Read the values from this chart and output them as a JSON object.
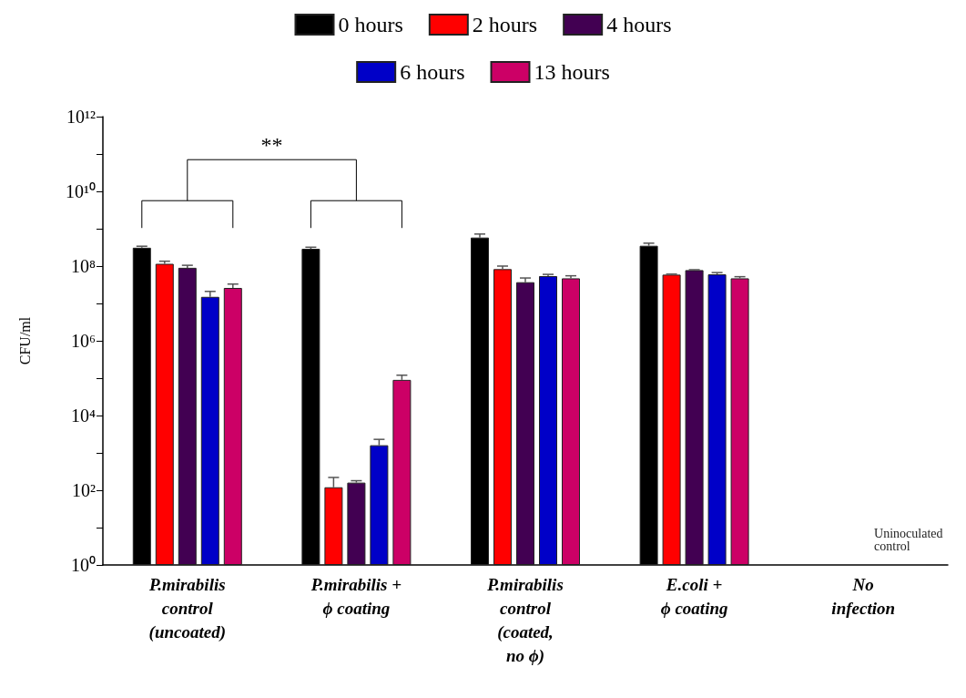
{
  "chart_data": {
    "type": "bar",
    "ylabel": "CFU/ml",
    "log": "y",
    "legend": "top",
    "grid": false,
    "categories": [
      "P.mirabilis\ncontrol\n(uncoated)",
      "P.mirabilis +\nϕ coating",
      "P.mirabilis\ncontrol\n(coated,\nno ϕ)",
      "E.coli +\nϕ coating",
      "No\ninfection"
    ],
    "ylim": [
      1,
      1000000000000
    ],
    "yticks": [
      {
        "value": 1,
        "label": "10⁰"
      },
      {
        "value": 10,
        "label": null
      },
      {
        "value": 100,
        "label": "10²"
      },
      {
        "value": 1000,
        "label": null
      },
      {
        "value": 10000,
        "label": "10⁴"
      },
      {
        "value": 100000,
        "label": null
      },
      {
        "value": 1000000,
        "label": "10⁶"
      },
      {
        "value": 10000000,
        "label": null
      },
      {
        "value": 100000000,
        "label": "10⁸"
      },
      {
        "value": 1000000000,
        "label": null
      },
      {
        "value": 10000000000,
        "label": "10¹⁰"
      },
      {
        "value": 100000000000,
        "label": null
      },
      {
        "value": 1000000000000,
        "label": "10¹²"
      }
    ],
    "series": [
      {
        "name": "0 hours",
        "color": "#000000",
        "values": [
          310000000,
          290000000,
          580000000,
          350000000,
          null
        ],
        "errors": [
          [
            310000000,
            340000000
          ],
          [
            290000000,
            320000000
          ],
          [
            580000000,
            720000000
          ],
          [
            350000000,
            410000000
          ],
          null
        ]
      },
      {
        "name": "2 hours",
        "color": "#ff0000",
        "values": [
          115000000,
          120,
          83000000,
          59000000,
          null
        ],
        "errors": [
          [
            115000000,
            135000000
          ],
          [
            120,
            220
          ],
          [
            83000000,
            100000000
          ],
          [
            59000000,
            61000000
          ],
          null
        ]
      },
      {
        "name": "4 hours",
        "color": "#420052",
        "values": [
          90000000,
          160,
          37000000,
          78000000,
          null
        ],
        "errors": [
          [
            90000000,
            105000000
          ],
          [
            160,
            180
          ],
          [
            37000000,
            48000000
          ],
          [
            78000000,
            80000000
          ],
          null
        ]
      },
      {
        "name": "6 hours",
        "color": "#0000c8",
        "values": [
          15000000,
          1600,
          54000000,
          60000000,
          null
        ],
        "errors": [
          [
            15000000,
            21000000
          ],
          [
            1600,
            2300
          ],
          [
            54000000,
            60000000
          ],
          [
            60000000,
            67000000
          ],
          null
        ]
      },
      {
        "name": "13 hours",
        "color": "#cc0066",
        "values": [
          26000000,
          90000,
          47000000,
          47000000,
          null
        ],
        "errors": [
          [
            26000000,
            33000000
          ],
          [
            90000,
            120000
          ],
          [
            47000000,
            55000000
          ],
          [
            47000000,
            52000000
          ],
          null
        ]
      }
    ],
    "annotations": [
      "**",
      "Uninoculated control"
    ]
  }
}
